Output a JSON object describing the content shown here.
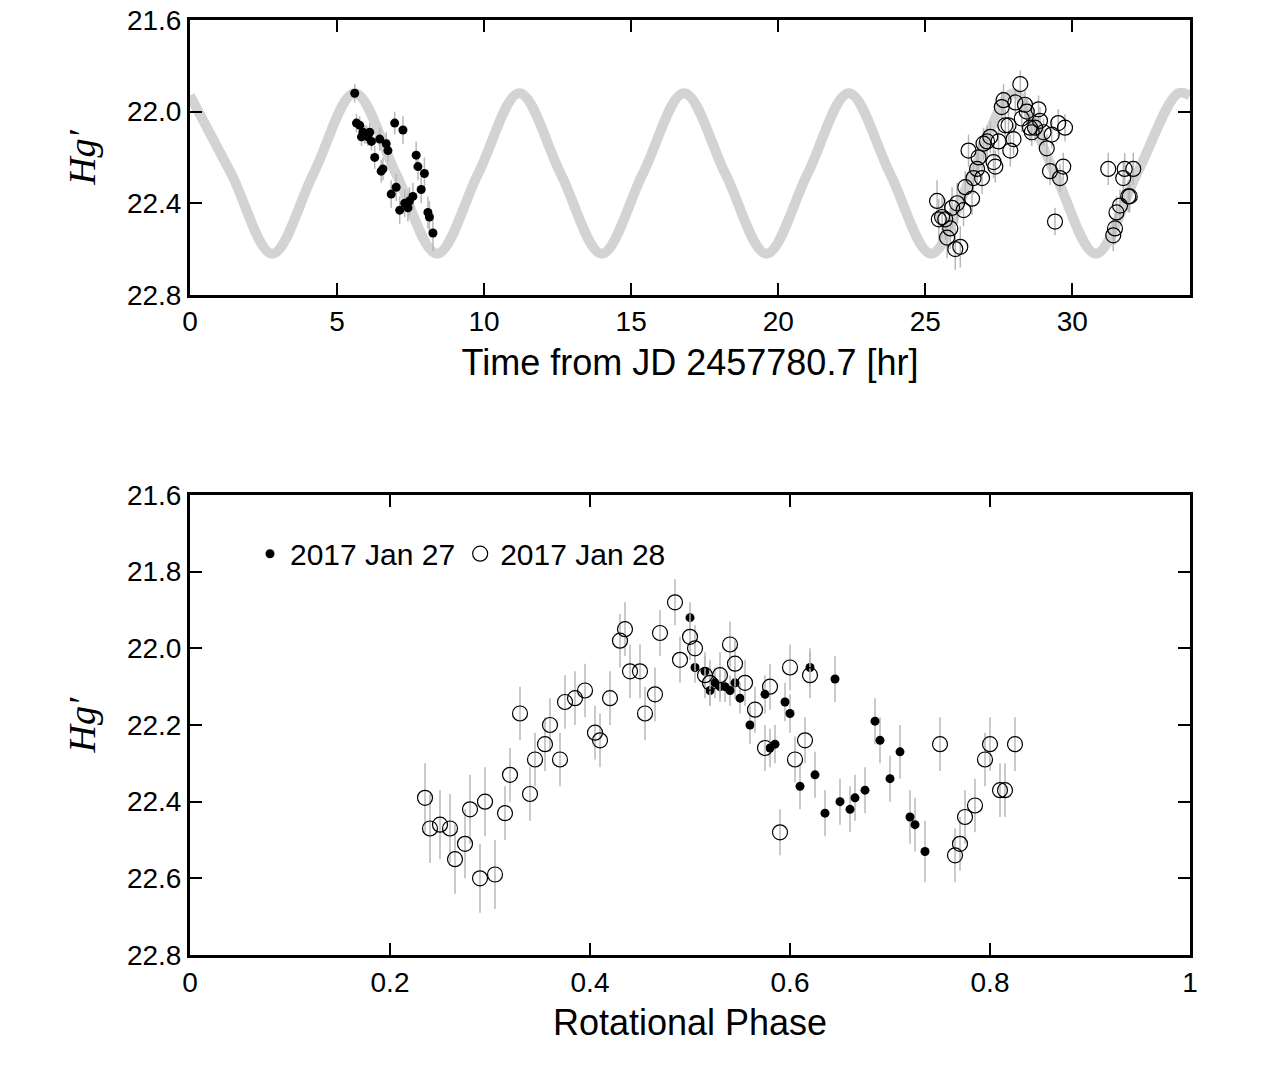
{
  "chart_data": [
    {
      "type": "scatter",
      "x_label": "Time from JD 2457780.7 [hr]",
      "y_label": "Hg′",
      "xlim": [
        0,
        34
      ],
      "xticks": [
        0,
        5,
        10,
        15,
        20,
        25,
        30
      ],
      "ylim": [
        22.8,
        21.6
      ],
      "yticks": [
        21.6,
        {
          "value": 22,
          "label": "22.0"
        },
        22.4,
        22.8
      ],
      "series": [
        {
          "type": "line",
          "color": "#d3d3d3",
          "line_style": "solid",
          "x": [
            0,
            1.4,
            2.8,
            4.2,
            5.6,
            7.0,
            8.4,
            9.8,
            11.2,
            12.6,
            14.0,
            15.4,
            16.8,
            18.2,
            19.6,
            21.0,
            22.4,
            23.8,
            25.2,
            26.6,
            28.0,
            29.4,
            30.8,
            32.2,
            33.6,
            34
          ],
          "values": [
            21.93,
            22.27,
            22.62,
            22.27,
            21.92,
            22.27,
            22.62,
            22.27,
            21.92,
            22.27,
            22.62,
            22.27,
            21.92,
            22.27,
            22.62,
            22.27,
            21.92,
            22.27,
            22.62,
            22.27,
            21.92,
            22.27,
            22.62,
            22.27,
            21.92,
            21.93
          ]
        },
        {
          "type": "scatter",
          "marker": "filled",
          "color": "#000000",
          "x": [
            5.6,
            5.66,
            5.77,
            5.83,
            5.88,
            5.94,
            6.0,
            6.05,
            6.11,
            6.17,
            6.28,
            6.45,
            6.5,
            6.56,
            6.67,
            6.73,
            6.84,
            6.96,
            7.01,
            7.13,
            7.24,
            7.3,
            7.41,
            7.46,
            7.58,
            7.69,
            7.75,
            7.86,
            7.97,
            8.09,
            8.14,
            8.26
          ],
          "values": [
            21.92,
            22.05,
            22.06,
            22.11,
            22.09,
            22.1,
            22.1,
            22.11,
            22.09,
            22.13,
            22.2,
            22.12,
            22.26,
            22.25,
            22.14,
            22.17,
            22.36,
            22.05,
            22.33,
            22.43,
            22.08,
            22.4,
            22.42,
            22.39,
            22.37,
            22.19,
            22.24,
            22.34,
            22.27,
            22.44,
            22.46,
            22.53
          ],
          "error": [
            0.04,
            0.04,
            0.04,
            0.04,
            0.04,
            0.04,
            0.04,
            0.04,
            0.04,
            0.04,
            0.05,
            0.05,
            0.05,
            0.05,
            0.05,
            0.05,
            0.06,
            0.05,
            0.06,
            0.06,
            0.06,
            0.06,
            0.06,
            0.06,
            0.06,
            0.06,
            0.06,
            0.06,
            0.07,
            0.07,
            0.07,
            0.08
          ]
        },
        {
          "type": "scatter",
          "marker": "open",
          "color": "#000000",
          "x": [
            25.4,
            25.46,
            25.57,
            25.68,
            25.74,
            25.85,
            25.91,
            26.02,
            26.08,
            26.19,
            26.3,
            26.36,
            26.47,
            26.59,
            26.64,
            26.76,
            26.81,
            26.93,
            26.98,
            27.1,
            27.21,
            27.32,
            27.38,
            27.49,
            27.6,
            27.66,
            27.72,
            27.83,
            27.89,
            28.0,
            28.06,
            28.23,
            28.28,
            28.39,
            28.45,
            28.56,
            28.62,
            28.73,
            28.85,
            28.9,
            29.02,
            29.13,
            29.24,
            29.3,
            29.41,
            29.52,
            29.58,
            29.69,
            29.75,
            31.22,
            31.39,
            31.45,
            31.5,
            31.62,
            31.73,
            31.78,
            31.9,
            31.95,
            32.07
          ],
          "values": [
            22.39,
            22.47,
            22.46,
            22.47,
            22.55,
            22.51,
            22.42,
            22.6,
            22.4,
            22.59,
            22.43,
            22.33,
            22.17,
            22.38,
            22.29,
            22.25,
            22.2,
            22.29,
            22.14,
            22.13,
            22.11,
            22.22,
            22.24,
            22.13,
            21.98,
            21.95,
            22.06,
            22.06,
            22.17,
            22.12,
            21.96,
            21.88,
            22.03,
            21.97,
            22.0,
            22.07,
            22.09,
            22.07,
            21.99,
            22.04,
            22.09,
            22.16,
            22.26,
            22.1,
            22.48,
            22.05,
            22.29,
            22.24,
            22.07,
            22.25,
            22.54,
            22.51,
            22.44,
            22.41,
            22.29,
            22.25,
            22.37,
            22.37,
            22.25
          ],
          "error": [
            0.09,
            0.09,
            0.09,
            0.09,
            0.09,
            0.09,
            0.09,
            0.09,
            0.09,
            0.09,
            0.07,
            0.07,
            0.07,
            0.07,
            0.07,
            0.07,
            0.07,
            0.07,
            0.07,
            0.07,
            0.07,
            0.07,
            0.07,
            0.07,
            0.07,
            0.07,
            0.07,
            0.07,
            0.07,
            0.07,
            0.06,
            0.06,
            0.06,
            0.06,
            0.06,
            0.06,
            0.06,
            0.06,
            0.06,
            0.06,
            0.06,
            0.06,
            0.06,
            0.06,
            0.06,
            0.06,
            0.06,
            0.06,
            0.06,
            0.07,
            0.07,
            0.07,
            0.07,
            0.07,
            0.07,
            0.07,
            0.07,
            0.07,
            0.07
          ]
        }
      ]
    },
    {
      "type": "scatter",
      "x_label": "Rotational Phase",
      "y_label": "Hg′",
      "xlim": [
        0,
        1
      ],
      "xticks": [
        0,
        0.2,
        0.4,
        0.6,
        0.8,
        1
      ],
      "ylim": [
        22.8,
        21.6
      ],
      "yticks": [
        21.6,
        21.8,
        {
          "value": 22,
          "label": "22.0"
        },
        22.2,
        22.4,
        22.6,
        22.8
      ],
      "legend": "upper left",
      "series": [
        {
          "name": "2017 Jan 27",
          "type": "scatter",
          "marker": "filled",
          "color": "#000000",
          "x": [
            0.5,
            0.505,
            0.515,
            0.52,
            0.525,
            0.53,
            0.535,
            0.54,
            0.545,
            0.55,
            0.56,
            0.575,
            0.58,
            0.585,
            0.595,
            0.6,
            0.61,
            0.62,
            0.625,
            0.635,
            0.645,
            0.65,
            0.66,
            0.665,
            0.675,
            0.685,
            0.69,
            0.7,
            0.71,
            0.72,
            0.725,
            0.735
          ],
          "values": [
            21.92,
            22.05,
            22.06,
            22.11,
            22.09,
            22.1,
            22.1,
            22.11,
            22.09,
            22.13,
            22.2,
            22.12,
            22.26,
            22.25,
            22.14,
            22.17,
            22.36,
            22.05,
            22.33,
            22.43,
            22.08,
            22.4,
            22.42,
            22.39,
            22.37,
            22.19,
            22.24,
            22.34,
            22.27,
            22.44,
            22.46,
            22.53
          ],
          "error": [
            0.04,
            0.04,
            0.04,
            0.04,
            0.04,
            0.04,
            0.04,
            0.04,
            0.04,
            0.04,
            0.05,
            0.05,
            0.05,
            0.05,
            0.05,
            0.05,
            0.06,
            0.05,
            0.06,
            0.06,
            0.06,
            0.06,
            0.06,
            0.06,
            0.06,
            0.06,
            0.06,
            0.06,
            0.07,
            0.07,
            0.07,
            0.08
          ]
        },
        {
          "name": "2017 Jan 28",
          "type": "scatter",
          "marker": "open",
          "color": "#000000",
          "x": [
            0.235,
            0.24,
            0.25,
            0.26,
            0.265,
            0.275,
            0.28,
            0.29,
            0.295,
            0.305,
            0.315,
            0.32,
            0.33,
            0.34,
            0.345,
            0.355,
            0.36,
            0.37,
            0.375,
            0.385,
            0.395,
            0.405,
            0.41,
            0.42,
            0.43,
            0.435,
            0.44,
            0.45,
            0.455,
            0.465,
            0.47,
            0.485,
            0.49,
            0.5,
            0.505,
            0.515,
            0.52,
            0.53,
            0.54,
            0.545,
            0.555,
            0.565,
            0.575,
            0.58,
            0.59,
            0.6,
            0.605,
            0.615,
            0.62,
            0.75,
            0.765,
            0.77,
            0.775,
            0.785,
            0.795,
            0.8,
            0.81,
            0.815,
            0.825
          ],
          "values": [
            22.39,
            22.47,
            22.46,
            22.47,
            22.55,
            22.51,
            22.42,
            22.6,
            22.4,
            22.59,
            22.43,
            22.33,
            22.17,
            22.38,
            22.29,
            22.25,
            22.2,
            22.29,
            22.14,
            22.13,
            22.11,
            22.22,
            22.24,
            22.13,
            21.98,
            21.95,
            22.06,
            22.06,
            22.17,
            22.12,
            21.96,
            21.88,
            22.03,
            21.97,
            22.0,
            22.07,
            22.09,
            22.07,
            21.99,
            22.04,
            22.09,
            22.16,
            22.26,
            22.1,
            22.48,
            22.05,
            22.29,
            22.24,
            22.07,
            22.25,
            22.54,
            22.51,
            22.44,
            22.41,
            22.29,
            22.25,
            22.37,
            22.37,
            22.25
          ],
          "error": [
            0.09,
            0.09,
            0.09,
            0.09,
            0.09,
            0.09,
            0.09,
            0.09,
            0.09,
            0.09,
            0.07,
            0.07,
            0.07,
            0.07,
            0.07,
            0.07,
            0.07,
            0.07,
            0.07,
            0.07,
            0.07,
            0.07,
            0.07,
            0.07,
            0.07,
            0.07,
            0.07,
            0.07,
            0.07,
            0.07,
            0.06,
            0.06,
            0.06,
            0.06,
            0.06,
            0.06,
            0.06,
            0.06,
            0.06,
            0.06,
            0.06,
            0.06,
            0.06,
            0.06,
            0.06,
            0.06,
            0.06,
            0.06,
            0.06,
            0.07,
            0.07,
            0.07,
            0.07,
            0.07,
            0.07,
            0.07,
            0.07,
            0.07,
            0.07
          ]
        }
      ]
    }
  ]
}
